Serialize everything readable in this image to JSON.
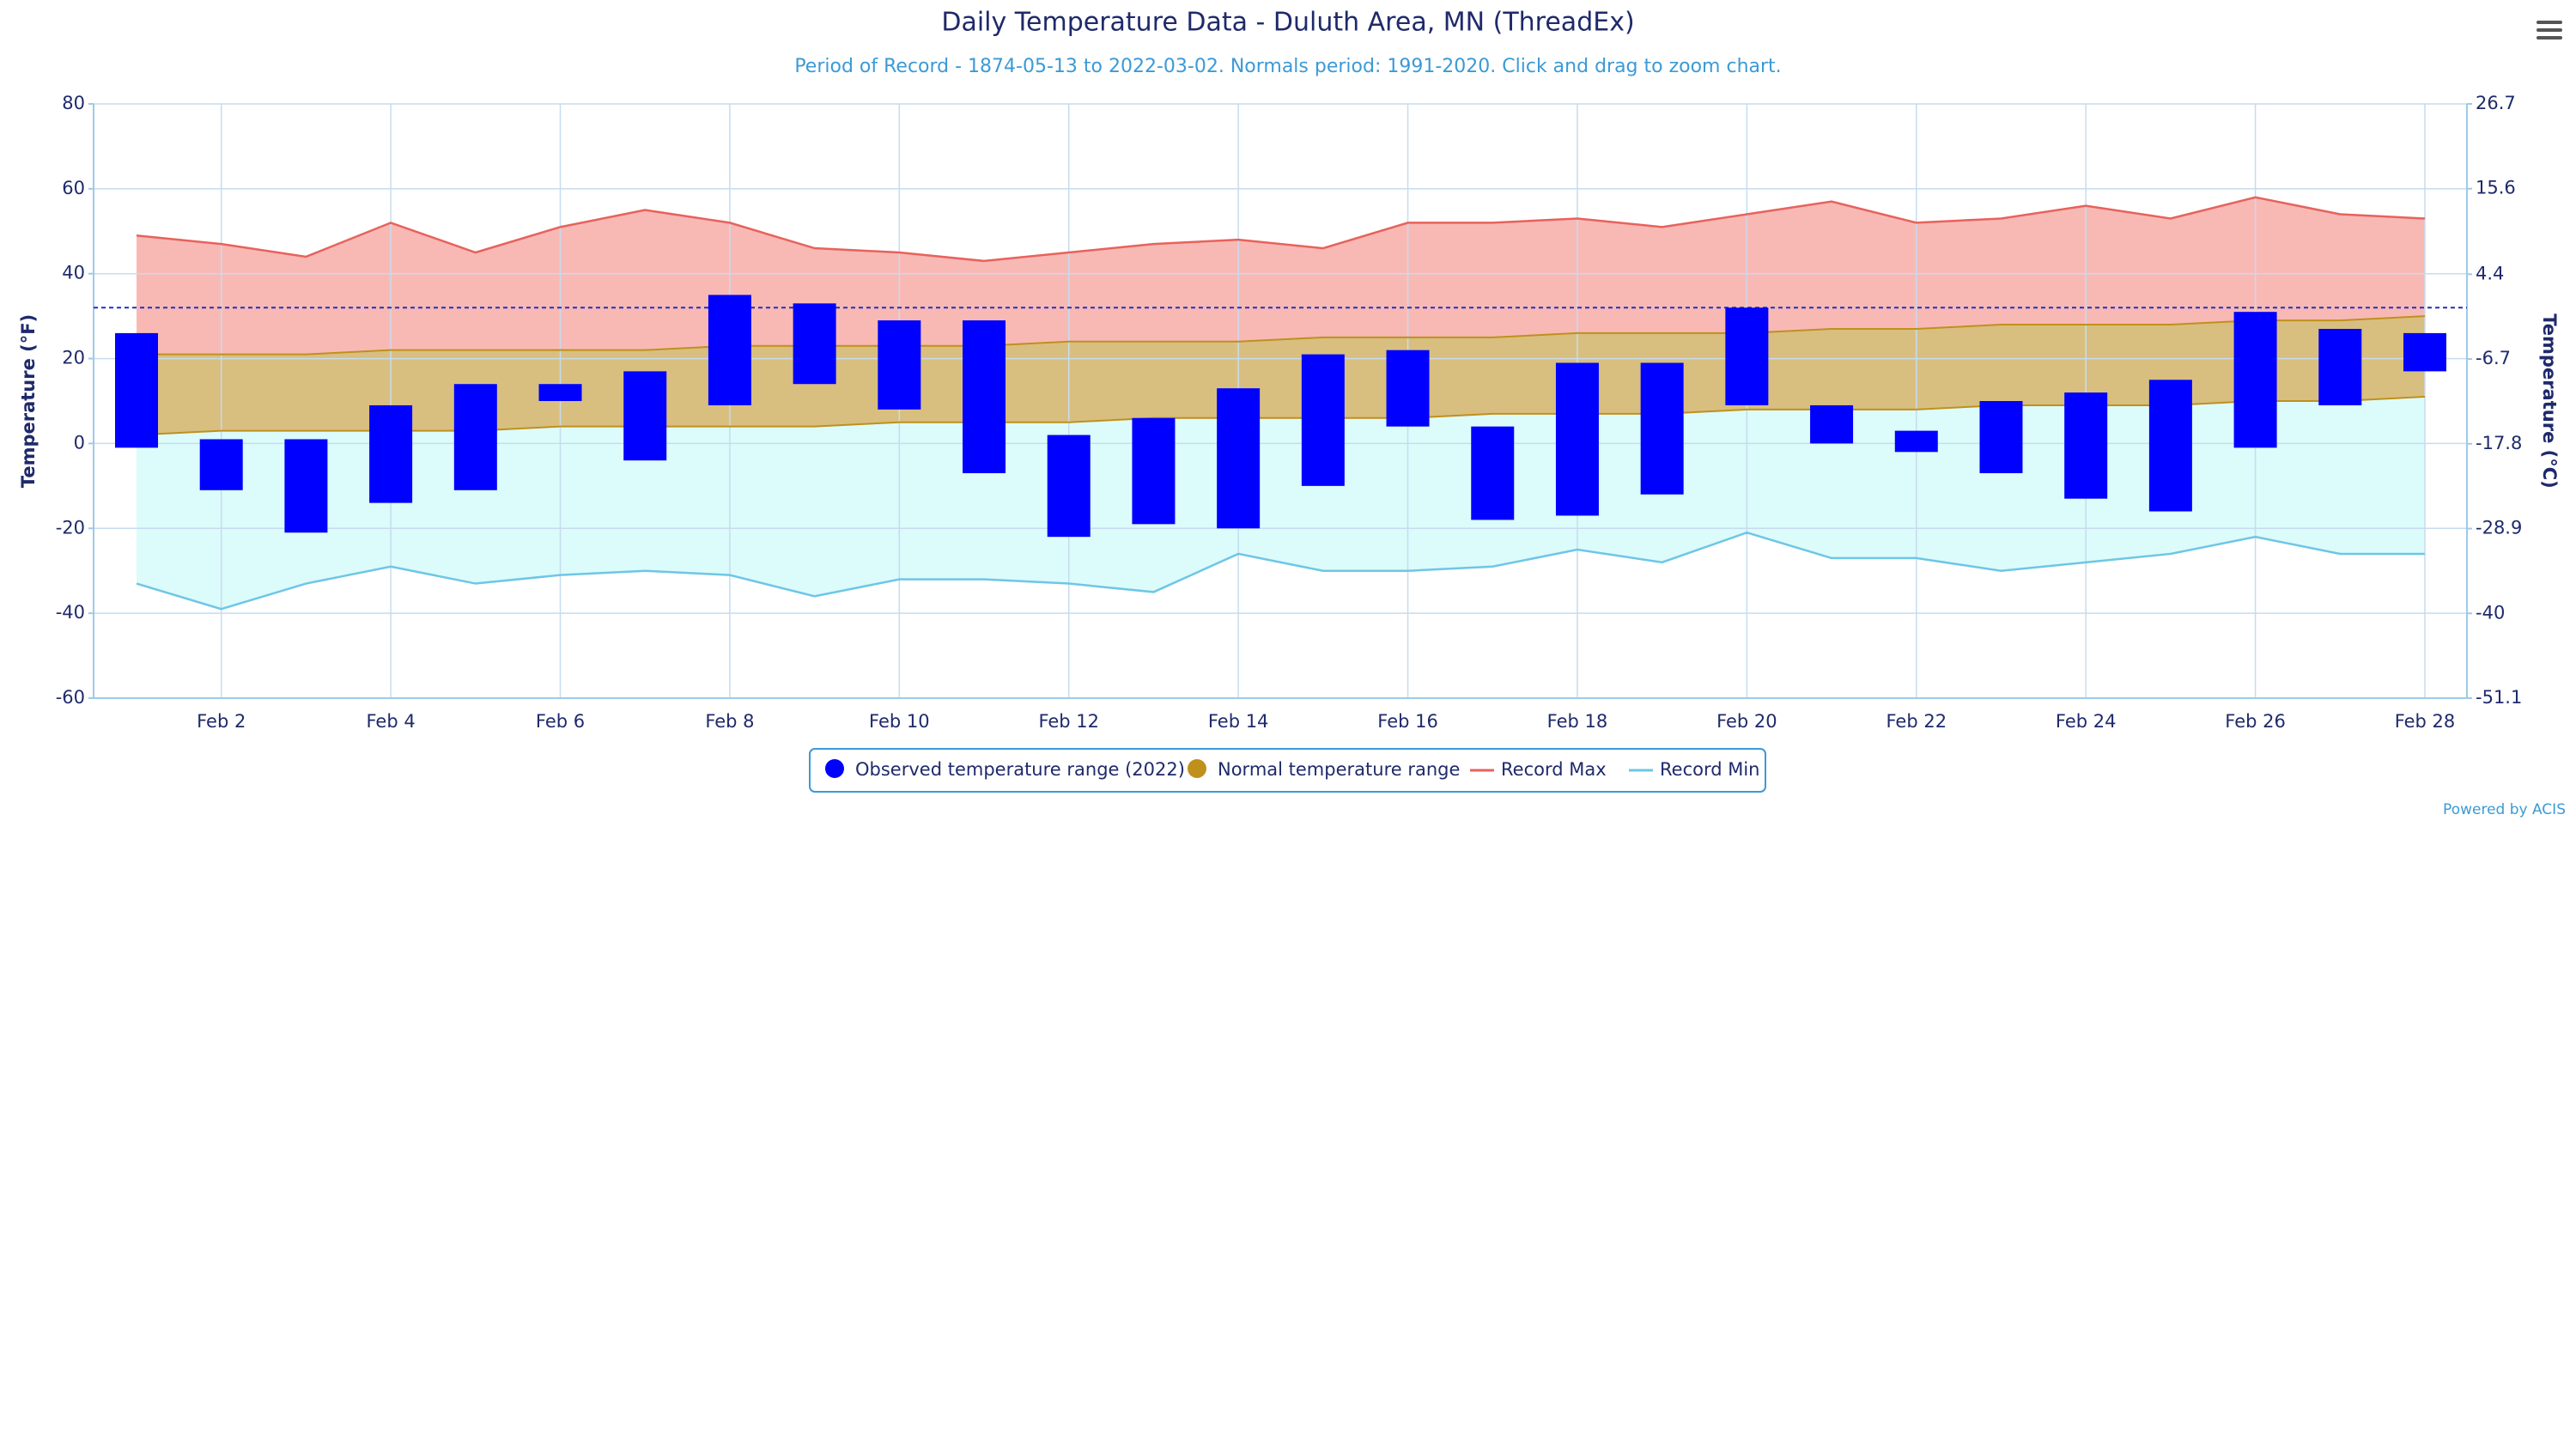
{
  "chart_data": {
    "type": "temperature-range",
    "title": "Daily Temperature Data - Duluth Area, MN (ThreadEx)",
    "subtitle": "Period of Record - 1874-05-13 to 2022-03-02. Normals period: 1991-2020. Click and drag to zoom chart.",
    "y_label": "Temperature (°F)",
    "y2_label": "Temperature (°C)",
    "credit": "Powered by ACIS",
    "categories": [
      null,
      "Feb 2",
      null,
      "Feb 4",
      null,
      "Feb 6",
      null,
      "Feb 8",
      null,
      "Feb 10",
      null,
      "Feb 12",
      null,
      "Feb 14",
      null,
      "Feb 16",
      null,
      "Feb 18",
      null,
      "Feb 20",
      null,
      "Feb 22",
      null,
      "Feb 24",
      null,
      "Feb 26",
      null,
      "Feb 28"
    ],
    "ylim": [
      -60,
      80
    ],
    "yticks": [
      -60,
      -40,
      -20,
      0,
      20,
      40,
      60,
      80
    ],
    "y2lim": [
      -51.1,
      26.7
    ],
    "y2ticks": [
      -51.1,
      -40,
      -28.9,
      -17.8,
      -6.7,
      4.4,
      15.6,
      26.7
    ],
    "reference_line": 32,
    "grid": true,
    "legend": "bottom",
    "series": [
      {
        "name": "Observed temperature range (2022)",
        "type": "columnrange",
        "color": "#0000ff",
        "high": [
          26,
          1,
          1,
          9,
          14,
          14,
          17,
          35,
          33,
          29,
          29,
          2,
          6,
          13,
          21,
          22,
          4,
          19,
          19,
          32,
          9,
          3,
          10,
          12,
          15,
          31,
          27,
          26
        ],
        "low": [
          -1,
          -11,
          -21,
          -14,
          -11,
          10,
          -4,
          9,
          14,
          8,
          -7,
          -22,
          -19,
          -20,
          -10,
          4,
          -18,
          -17,
          -12,
          9,
          0,
          -2,
          -7,
          -13,
          -16,
          -1,
          9,
          17
        ]
      },
      {
        "name": "Normal temperature range",
        "type": "arearange",
        "color": "#c0901c",
        "fill": "#d8bf80",
        "high": [
          21,
          21,
          21,
          22,
          22,
          22,
          22,
          23,
          23,
          23,
          23,
          24,
          24,
          24,
          25,
          25,
          25,
          26,
          26,
          26,
          27,
          27,
          28,
          28,
          28,
          29,
          29,
          30
        ],
        "low": [
          2,
          3,
          3,
          3,
          3,
          4,
          4,
          4,
          4,
          5,
          5,
          5,
          6,
          6,
          6,
          6,
          7,
          7,
          7,
          8,
          8,
          8,
          9,
          9,
          9,
          10,
          10,
          11
        ]
      },
      {
        "name": "Record Max",
        "type": "line",
        "color": "#e8625c",
        "fill": "#f8b9b5",
        "values": [
          49,
          47,
          44,
          52,
          45,
          51,
          55,
          52,
          46,
          45,
          43,
          45,
          47,
          48,
          46,
          52,
          52,
          53,
          51,
          54,
          57,
          52,
          53,
          56,
          53,
          58,
          54,
          53
        ]
      },
      {
        "name": "Record Min",
        "type": "line",
        "color": "#6ec6e6",
        "fill": "#dcfbfb",
        "values": [
          -33,
          -39,
          -33,
          -29,
          -33,
          -31,
          -30,
          -31,
          -36,
          -32,
          -32,
          -33,
          -35,
          -26,
          -30,
          -30,
          -29,
          -25,
          -28,
          -21,
          -27,
          -27,
          -30,
          -28,
          -26,
          -22,
          -26,
          -26
        ]
      }
    ]
  }
}
